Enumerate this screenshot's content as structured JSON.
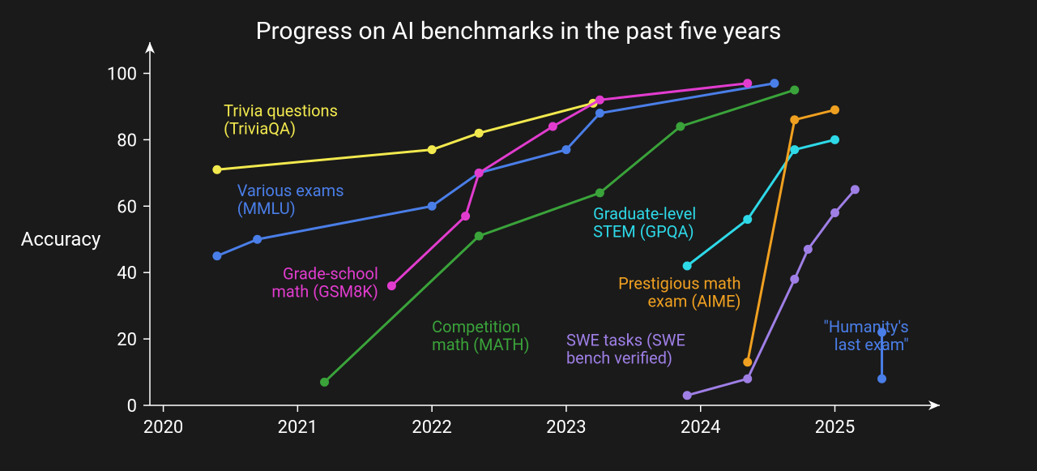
{
  "chart": {
    "type": "line",
    "title": "Progress on AI benchmarks in the past five years",
    "title_fontsize": 30,
    "background_color": "#1a1a1a",
    "axis_color": "#ffffff",
    "text_color": "#ffffff",
    "y_axis": {
      "label": "Accuracy",
      "label_fontsize": 24,
      "ticks": [
        0,
        20,
        40,
        60,
        80,
        100
      ],
      "tick_fontsize": 22,
      "range": [
        0,
        105
      ]
    },
    "x_axis": {
      "ticks": [
        2020,
        2021,
        2022,
        2023,
        2024,
        2025
      ],
      "tick_fontsize": 22,
      "range": [
        2019.9,
        2025.6
      ]
    },
    "marker_radius": 5.5,
    "line_width": 3,
    "series": [
      {
        "id": "triviaqa",
        "label_lines": [
          "Trivia questions",
          "(TriviaQA)"
        ],
        "color": "#f2e94e",
        "label_pos": {
          "x": 2020.45,
          "y": 87,
          "anchor": "start"
        },
        "points": [
          {
            "x": 2020.4,
            "y": 71
          },
          {
            "x": 2022.0,
            "y": 77
          },
          {
            "x": 2022.35,
            "y": 82
          },
          {
            "x": 2023.2,
            "y": 91
          }
        ]
      },
      {
        "id": "mmlu",
        "label_lines": [
          "Various exams",
          "(MMLU)"
        ],
        "color": "#4a7ee8",
        "label_pos": {
          "x": 2020.55,
          "y": 63,
          "anchor": "start"
        },
        "points": [
          {
            "x": 2020.4,
            "y": 45
          },
          {
            "x": 2020.7,
            "y": 50
          },
          {
            "x": 2022.0,
            "y": 60
          },
          {
            "x": 2022.35,
            "y": 70
          },
          {
            "x": 2023.0,
            "y": 77
          },
          {
            "x": 2023.25,
            "y": 88
          },
          {
            "x": 2024.55,
            "y": 97
          }
        ]
      },
      {
        "id": "gsm8k",
        "label_lines": [
          "Grade-school",
          "math (GSM8K)"
        ],
        "color": "#e23ccf",
        "label_pos": {
          "x": 2021.6,
          "y": 38,
          "anchor": "end"
        },
        "points": [
          {
            "x": 2021.7,
            "y": 36
          },
          {
            "x": 2022.25,
            "y": 57
          },
          {
            "x": 2022.35,
            "y": 70
          },
          {
            "x": 2022.9,
            "y": 84
          },
          {
            "x": 2023.25,
            "y": 92
          },
          {
            "x": 2024.35,
            "y": 97
          }
        ]
      },
      {
        "id": "math",
        "label_lines": [
          "Competition",
          "math (MATH)"
        ],
        "color": "#3aa33a",
        "label_pos": {
          "x": 2022.0,
          "y": 22,
          "anchor": "start"
        },
        "points": [
          {
            "x": 2021.2,
            "y": 7
          },
          {
            "x": 2022.35,
            "y": 51
          },
          {
            "x": 2023.25,
            "y": 64
          },
          {
            "x": 2023.85,
            "y": 84
          },
          {
            "x": 2024.7,
            "y": 95
          }
        ]
      },
      {
        "id": "gpqa",
        "label_lines": [
          "Graduate-level",
          "STEM (GPQA)"
        ],
        "color": "#2ed9e8",
        "label_pos": {
          "x": 2023.2,
          "y": 56,
          "anchor": "start"
        },
        "points": [
          {
            "x": 2023.9,
            "y": 42
          },
          {
            "x": 2024.35,
            "y": 56
          },
          {
            "x": 2024.7,
            "y": 77
          },
          {
            "x": 2025.0,
            "y": 80
          }
        ]
      },
      {
        "id": "aime",
        "label_lines": [
          "Prestigious math",
          "exam (AIME)"
        ],
        "color": "#f0a020",
        "label_pos": {
          "x": 2024.3,
          "y": 35,
          "anchor": "end"
        },
        "points": [
          {
            "x": 2024.35,
            "y": 13
          },
          {
            "x": 2024.7,
            "y": 86
          },
          {
            "x": 2025.0,
            "y": 89
          }
        ]
      },
      {
        "id": "swe",
        "label_lines": [
          "SWE tasks (SWE",
          "bench verified)"
        ],
        "color": "#9f7fe6",
        "label_pos": {
          "x": 2023.0,
          "y": 18,
          "anchor": "start"
        },
        "points": [
          {
            "x": 2023.9,
            "y": 3
          },
          {
            "x": 2024.35,
            "y": 8
          },
          {
            "x": 2024.7,
            "y": 38
          },
          {
            "x": 2024.8,
            "y": 47
          },
          {
            "x": 2025.0,
            "y": 58
          },
          {
            "x": 2025.15,
            "y": 65
          }
        ]
      },
      {
        "id": "hle",
        "label_lines": [
          "\"Humanity's",
          "last exam\""
        ],
        "color": "#4a7ee8",
        "label_pos": {
          "x": 2025.55,
          "y": 22,
          "anchor": "end",
          "align_right_of_series": true
        },
        "points": [
          {
            "x": 2025.35,
            "y": 8
          },
          {
            "x": 2025.35,
            "y": 22
          }
        ]
      }
    ]
  }
}
